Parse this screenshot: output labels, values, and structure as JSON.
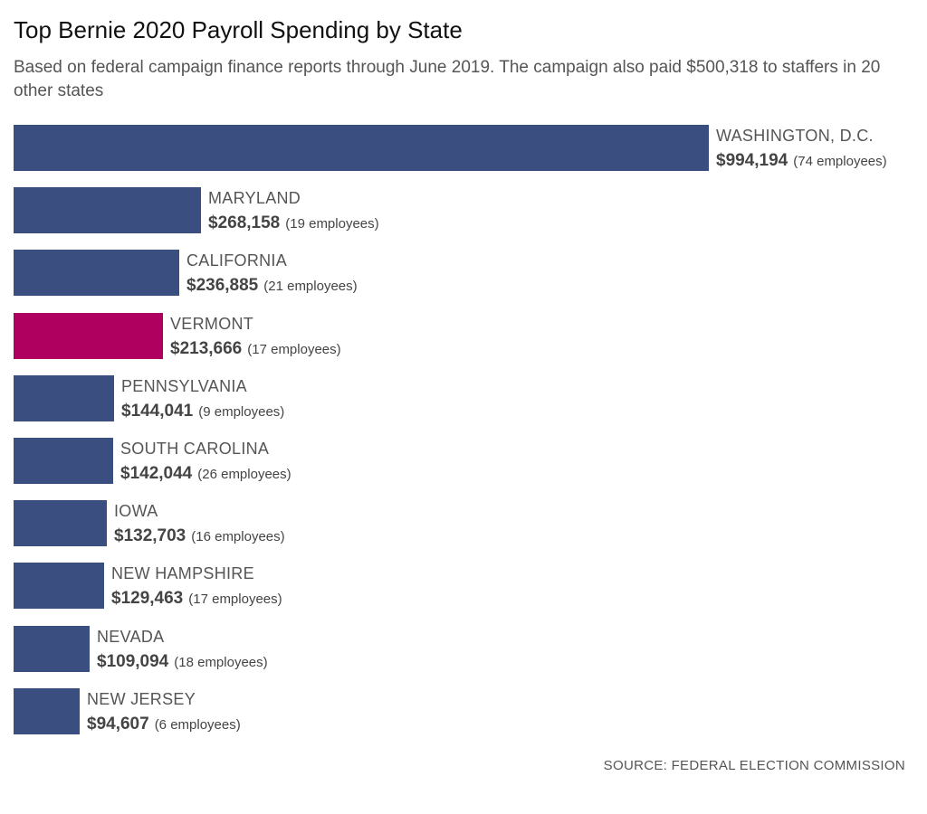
{
  "chart_data": {
    "type": "bar",
    "orientation": "horizontal",
    "title": "Top Bernie 2020 Payroll Spending by State",
    "subtitle": "Based on federal campaign finance reports through June 2019. The campaign also paid $500,318 to staffers in 20 other states",
    "source": "SOURCE: FEDERAL ELECTION COMMISSION",
    "xlim": [
      0,
      994194
    ],
    "grid": false,
    "categories": [
      "WASHINGTON, D.C.",
      "MARYLAND",
      "CALIFORNIA",
      "VERMONT",
      "PENNSYLVANIA",
      "SOUTH CAROLINA",
      "IOWA",
      "NEW HAMPSHIRE",
      "NEVADA",
      "NEW JERSEY"
    ],
    "values": [
      994194,
      268158,
      236885,
      213666,
      144041,
      142044,
      132703,
      129463,
      109094,
      94607
    ],
    "value_labels": [
      "$994,194",
      "$268,158",
      "$236,885",
      "$213,666",
      "$144,041",
      "$142,044",
      "$132,703",
      "$129,463",
      "$109,094",
      "$94,607"
    ],
    "employees": [
      74,
      19,
      21,
      17,
      9,
      26,
      16,
      17,
      18,
      6
    ],
    "employee_labels": [
      "(74 employees)",
      "(19 employees)",
      "(21 employees)",
      "(17 employees)",
      "(9 employees)",
      "(26 employees)",
      "(16 employees)",
      "(17 employees)",
      "(18 employees)",
      "(6 employees)"
    ],
    "highlight_category": "VERMONT",
    "colors": {
      "bar": "#3b4e80",
      "highlight": "#b0005f"
    }
  }
}
